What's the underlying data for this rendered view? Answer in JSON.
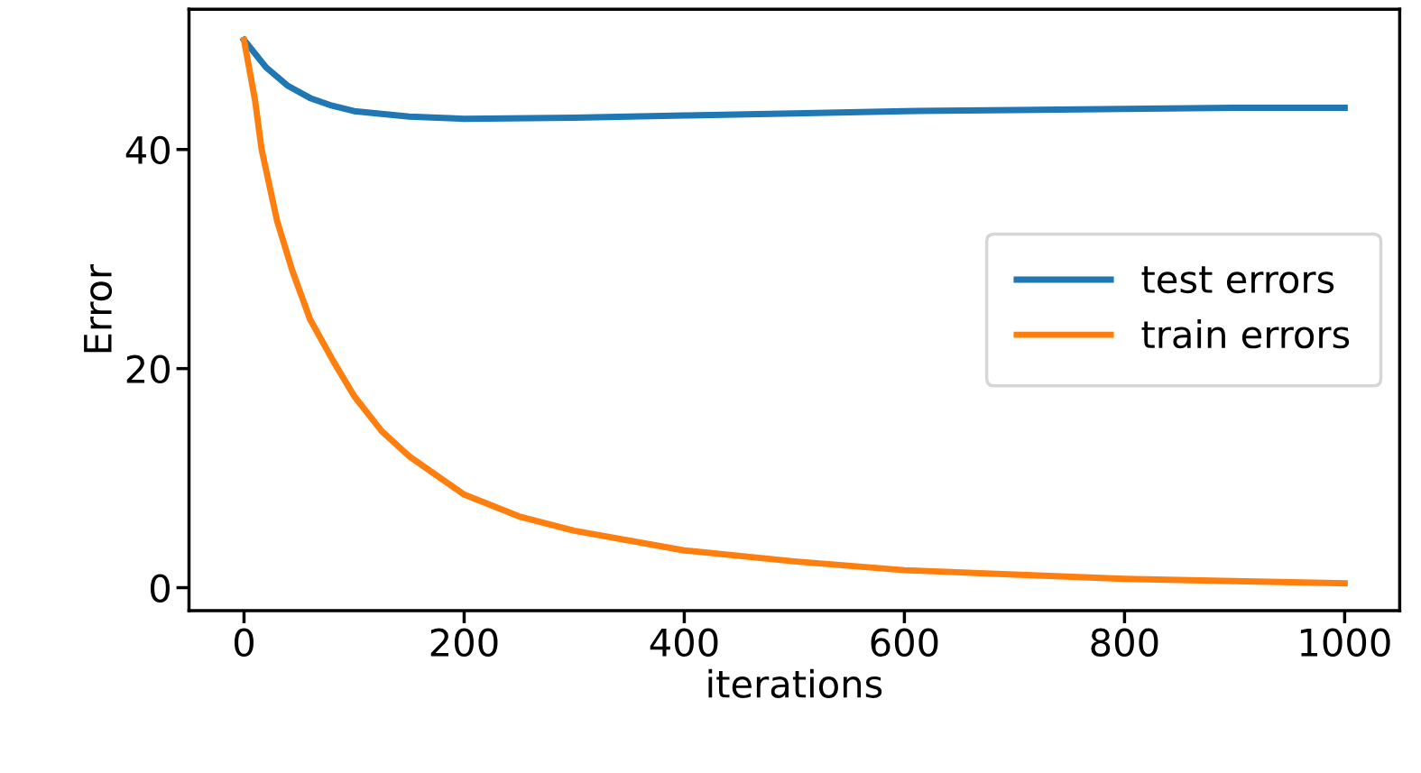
{
  "chart_data": {
    "type": "line",
    "xlabel": "iterations",
    "ylabel": "Error",
    "xlim": [
      -50,
      1050
    ],
    "ylim": [
      -2.1,
      52.8
    ],
    "xticks": [
      0,
      200,
      400,
      600,
      800,
      1000
    ],
    "yticks": [
      0,
      20,
      40
    ],
    "legend": "right",
    "grid": false,
    "series": [
      {
        "name": "test errors",
        "color": "#1f77b4",
        "x": [
          0,
          20,
          40,
          60,
          80,
          100,
          150,
          200,
          300,
          400,
          500,
          600,
          700,
          800,
          900,
          1000
        ],
        "values": [
          50,
          47.5,
          45.8,
          44.7,
          44,
          43.5,
          43,
          42.8,
          42.9,
          43.1,
          43.3,
          43.5,
          43.6,
          43.7,
          43.8,
          43.8
        ]
      },
      {
        "name": "train errors",
        "color": "#ff7f0e",
        "x": [
          0,
          10,
          16,
          30,
          44,
          60,
          81,
          100,
          125,
          150,
          200,
          250,
          300,
          400,
          500,
          600,
          700,
          800,
          900,
          1000
        ],
        "values": [
          50,
          44.5,
          40,
          33.5,
          28.9,
          24.5,
          20.7,
          17.5,
          14.3,
          12,
          8.5,
          6.5,
          5.2,
          3.4,
          2.4,
          1.6,
          1.2,
          0.8,
          0.6,
          0.4
        ]
      }
    ]
  }
}
